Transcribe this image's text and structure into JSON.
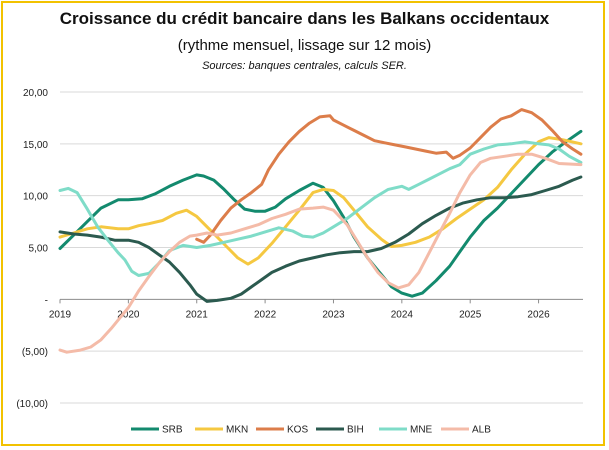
{
  "chart_data": {
    "type": "line",
    "title": "Croissance du crédit bancaire dans les Balkans occidentaux",
    "subtitle": "(rythme mensuel, lissage sur 12 mois)",
    "source": "Sources: banques centrales, calculs SER.",
    "xlabel": "",
    "ylabel": "",
    "xlim": [
      2019.0,
      2026.65
    ],
    "ylim": [
      -10,
      20
    ],
    "x_ticks": [
      2019,
      2020,
      2021,
      2022,
      2023,
      2024,
      2025,
      2026
    ],
    "x_tick_labels": [
      "2019",
      "2020",
      "2021",
      "2022",
      "2023",
      "2024",
      "2025",
      "2026"
    ],
    "y_ticks": [
      20,
      15,
      10,
      5,
      0,
      -5,
      -10
    ],
    "y_tick_labels": [
      "20,00",
      "15,00",
      "10,00",
      "5,00",
      "-",
      "(5,00)",
      "(10,00)"
    ],
    "grid": "horizontal",
    "legend": "bottom",
    "series": [
      {
        "name": "SRB",
        "color": "#138a6e",
        "points": [
          [
            2019.0,
            4.9
          ],
          [
            2019.2,
            6.2
          ],
          [
            2019.4,
            7.5
          ],
          [
            2019.6,
            8.8
          ],
          [
            2019.85,
            9.6
          ],
          [
            2020.0,
            9.6
          ],
          [
            2020.2,
            9.7
          ],
          [
            2020.4,
            10.2
          ],
          [
            2020.6,
            10.9
          ],
          [
            2020.8,
            11.5
          ],
          [
            2021.0,
            12.0
          ],
          [
            2021.1,
            11.9
          ],
          [
            2021.25,
            11.5
          ],
          [
            2021.4,
            10.6
          ],
          [
            2021.55,
            9.6
          ],
          [
            2021.7,
            8.7
          ],
          [
            2021.85,
            8.5
          ],
          [
            2022.0,
            8.5
          ],
          [
            2022.15,
            8.9
          ],
          [
            2022.3,
            9.7
          ],
          [
            2022.5,
            10.5
          ],
          [
            2022.7,
            11.2
          ],
          [
            2022.85,
            10.8
          ],
          [
            2023.0,
            9.5
          ],
          [
            2023.15,
            7.9
          ],
          [
            2023.3,
            6.0
          ],
          [
            2023.5,
            4.0
          ],
          [
            2023.7,
            2.4
          ],
          [
            2023.85,
            1.2
          ],
          [
            2024.0,
            0.6
          ],
          [
            2024.15,
            0.3
          ],
          [
            2024.3,
            0.6
          ],
          [
            2024.5,
            1.8
          ],
          [
            2024.7,
            3.2
          ],
          [
            2024.85,
            4.6
          ],
          [
            2025.0,
            6.0
          ],
          [
            2025.2,
            7.6
          ],
          [
            2025.4,
            8.8
          ],
          [
            2025.6,
            10.2
          ],
          [
            2025.8,
            11.6
          ],
          [
            2026.0,
            13.0
          ],
          [
            2026.2,
            14.2
          ],
          [
            2026.4,
            15.2
          ],
          [
            2026.62,
            16.2
          ]
        ]
      },
      {
        "name": "MKN",
        "color": "#f5c841",
        "points": [
          [
            2019.0,
            6.0
          ],
          [
            2019.2,
            6.4
          ],
          [
            2019.4,
            6.8
          ],
          [
            2019.6,
            7.0
          ],
          [
            2019.85,
            6.8
          ],
          [
            2020.0,
            6.8
          ],
          [
            2020.15,
            7.1
          ],
          [
            2020.3,
            7.3
          ],
          [
            2020.5,
            7.6
          ],
          [
            2020.7,
            8.3
          ],
          [
            2020.85,
            8.6
          ],
          [
            2021.0,
            8.0
          ],
          [
            2021.15,
            7.0
          ],
          [
            2021.3,
            6.0
          ],
          [
            2021.45,
            5.0
          ],
          [
            2021.6,
            4.0
          ],
          [
            2021.75,
            3.4
          ],
          [
            2021.9,
            4.0
          ],
          [
            2022.1,
            5.4
          ],
          [
            2022.3,
            7.0
          ],
          [
            2022.5,
            8.6
          ],
          [
            2022.7,
            10.3
          ],
          [
            2022.85,
            10.6
          ],
          [
            2023.0,
            10.5
          ],
          [
            2023.15,
            9.8
          ],
          [
            2023.3,
            8.6
          ],
          [
            2023.5,
            7.0
          ],
          [
            2023.7,
            5.8
          ],
          [
            2023.85,
            5.1
          ],
          [
            2024.0,
            5.2
          ],
          [
            2024.2,
            5.5
          ],
          [
            2024.4,
            6.0
          ],
          [
            2024.6,
            6.8
          ],
          [
            2024.8,
            7.8
          ],
          [
            2025.0,
            8.7
          ],
          [
            2025.2,
            9.6
          ],
          [
            2025.4,
            10.8
          ],
          [
            2025.6,
            12.5
          ],
          [
            2025.8,
            14.0
          ],
          [
            2026.0,
            15.2
          ],
          [
            2026.15,
            15.6
          ],
          [
            2026.35,
            15.4
          ],
          [
            2026.62,
            15.0
          ]
        ]
      },
      {
        "name": "KOS",
        "color": "#dc7d4a",
        "points": [
          [
            2021.0,
            5.8
          ],
          [
            2021.1,
            5.5
          ],
          [
            2021.2,
            6.2
          ],
          [
            2021.35,
            7.6
          ],
          [
            2021.5,
            8.8
          ],
          [
            2021.65,
            9.6
          ],
          [
            2021.8,
            10.3
          ],
          [
            2021.95,
            11.1
          ],
          [
            2022.05,
            12.5
          ],
          [
            2022.2,
            14.0
          ],
          [
            2022.35,
            15.2
          ],
          [
            2022.5,
            16.2
          ],
          [
            2022.65,
            17.0
          ],
          [
            2022.8,
            17.6
          ],
          [
            2022.95,
            17.7
          ],
          [
            2023.0,
            17.3
          ],
          [
            2023.15,
            16.8
          ],
          [
            2023.3,
            16.3
          ],
          [
            2023.45,
            15.8
          ],
          [
            2023.6,
            15.3
          ],
          [
            2023.75,
            15.1
          ],
          [
            2023.9,
            14.9
          ],
          [
            2024.05,
            14.7
          ],
          [
            2024.2,
            14.5
          ],
          [
            2024.35,
            14.3
          ],
          [
            2024.5,
            14.1
          ],
          [
            2024.65,
            14.2
          ],
          [
            2024.75,
            13.6
          ],
          [
            2024.85,
            13.9
          ],
          [
            2025.0,
            14.6
          ],
          [
            2025.15,
            15.6
          ],
          [
            2025.3,
            16.6
          ],
          [
            2025.45,
            17.4
          ],
          [
            2025.6,
            17.7
          ],
          [
            2025.75,
            18.3
          ],
          [
            2025.9,
            18.0
          ],
          [
            2026.05,
            17.3
          ],
          [
            2026.2,
            16.3
          ],
          [
            2026.35,
            15.2
          ],
          [
            2026.5,
            14.5
          ],
          [
            2026.62,
            14.0
          ]
        ]
      },
      {
        "name": "BIH",
        "color": "#2b5a4f",
        "points": [
          [
            2019.0,
            6.5
          ],
          [
            2019.2,
            6.3
          ],
          [
            2019.4,
            6.2
          ],
          [
            2019.6,
            6.0
          ],
          [
            2019.8,
            5.7
          ],
          [
            2020.0,
            5.7
          ],
          [
            2020.15,
            5.5
          ],
          [
            2020.3,
            5.0
          ],
          [
            2020.45,
            4.3
          ],
          [
            2020.6,
            3.6
          ],
          [
            2020.75,
            2.6
          ],
          [
            2020.9,
            1.4
          ],
          [
            2021.0,
            0.5
          ],
          [
            2021.15,
            -0.2
          ],
          [
            2021.3,
            -0.1
          ],
          [
            2021.5,
            0.1
          ],
          [
            2021.65,
            0.5
          ],
          [
            2021.8,
            1.2
          ],
          [
            2021.95,
            1.9
          ],
          [
            2022.1,
            2.6
          ],
          [
            2022.3,
            3.2
          ],
          [
            2022.5,
            3.7
          ],
          [
            2022.7,
            4.0
          ],
          [
            2022.9,
            4.3
          ],
          [
            2023.1,
            4.5
          ],
          [
            2023.3,
            4.6
          ],
          [
            2023.5,
            4.6
          ],
          [
            2023.7,
            4.9
          ],
          [
            2023.9,
            5.5
          ],
          [
            2024.1,
            6.3
          ],
          [
            2024.3,
            7.3
          ],
          [
            2024.5,
            8.1
          ],
          [
            2024.7,
            8.8
          ],
          [
            2024.9,
            9.3
          ],
          [
            2025.1,
            9.6
          ],
          [
            2025.3,
            9.8
          ],
          [
            2025.5,
            9.8
          ],
          [
            2025.7,
            9.9
          ],
          [
            2025.9,
            10.1
          ],
          [
            2026.1,
            10.5
          ],
          [
            2026.3,
            10.9
          ],
          [
            2026.5,
            11.5
          ],
          [
            2026.62,
            11.8
          ]
        ]
      },
      {
        "name": "MNE",
        "color": "#7fdcc8",
        "points": [
          [
            2019.0,
            10.5
          ],
          [
            2019.12,
            10.7
          ],
          [
            2019.25,
            10.3
          ],
          [
            2019.4,
            8.7
          ],
          [
            2019.55,
            7.0
          ],
          [
            2019.7,
            5.7
          ],
          [
            2019.85,
            4.5
          ],
          [
            2019.95,
            3.8
          ],
          [
            2020.05,
            2.7
          ],
          [
            2020.15,
            2.3
          ],
          [
            2020.3,
            2.5
          ],
          [
            2020.45,
            3.5
          ],
          [
            2020.6,
            4.7
          ],
          [
            2020.8,
            5.2
          ],
          [
            2021.0,
            5.0
          ],
          [
            2021.2,
            5.2
          ],
          [
            2021.4,
            5.5
          ],
          [
            2021.6,
            5.8
          ],
          [
            2021.8,
            6.1
          ],
          [
            2022.0,
            6.5
          ],
          [
            2022.2,
            6.9
          ],
          [
            2022.4,
            6.6
          ],
          [
            2022.55,
            6.1
          ],
          [
            2022.7,
            6.0
          ],
          [
            2022.85,
            6.4
          ],
          [
            2023.0,
            7.0
          ],
          [
            2023.2,
            7.8
          ],
          [
            2023.4,
            8.8
          ],
          [
            2023.6,
            9.8
          ],
          [
            2023.8,
            10.6
          ],
          [
            2024.0,
            10.9
          ],
          [
            2024.1,
            10.6
          ],
          [
            2024.25,
            11.1
          ],
          [
            2024.4,
            11.6
          ],
          [
            2024.55,
            12.1
          ],
          [
            2024.7,
            12.6
          ],
          [
            2024.85,
            13.0
          ],
          [
            2025.0,
            14.0
          ],
          [
            2025.2,
            14.5
          ],
          [
            2025.4,
            14.9
          ],
          [
            2025.6,
            15.0
          ],
          [
            2025.8,
            15.2
          ],
          [
            2026.0,
            15.0
          ],
          [
            2026.15,
            14.9
          ],
          [
            2026.3,
            14.5
          ],
          [
            2026.45,
            13.8
          ],
          [
            2026.62,
            13.2
          ]
        ]
      },
      {
        "name": "ALB",
        "color": "#f4bba8",
        "points": [
          [
            2019.0,
            -4.9
          ],
          [
            2019.1,
            -5.1
          ],
          [
            2019.3,
            -4.9
          ],
          [
            2019.45,
            -4.6
          ],
          [
            2019.6,
            -3.9
          ],
          [
            2019.75,
            -2.8
          ],
          [
            2019.9,
            -1.6
          ],
          [
            2020.0,
            -0.8
          ],
          [
            2020.15,
            0.8
          ],
          [
            2020.3,
            2.2
          ],
          [
            2020.45,
            3.5
          ],
          [
            2020.6,
            4.6
          ],
          [
            2020.75,
            5.5
          ],
          [
            2020.9,
            6.1
          ],
          [
            2021.0,
            6.2
          ],
          [
            2021.15,
            6.4
          ],
          [
            2021.3,
            6.2
          ],
          [
            2021.5,
            6.4
          ],
          [
            2021.7,
            6.8
          ],
          [
            2021.9,
            7.2
          ],
          [
            2022.1,
            7.8
          ],
          [
            2022.3,
            8.2
          ],
          [
            2022.5,
            8.7
          ],
          [
            2022.7,
            8.8
          ],
          [
            2022.85,
            8.9
          ],
          [
            2023.0,
            8.6
          ],
          [
            2023.1,
            7.9
          ],
          [
            2023.2,
            7.2
          ],
          [
            2023.35,
            5.6
          ],
          [
            2023.5,
            4.0
          ],
          [
            2023.65,
            2.6
          ],
          [
            2023.8,
            1.6
          ],
          [
            2023.95,
            1.1
          ],
          [
            2024.1,
            1.4
          ],
          [
            2024.25,
            2.6
          ],
          [
            2024.4,
            4.5
          ],
          [
            2024.55,
            6.4
          ],
          [
            2024.7,
            8.3
          ],
          [
            2024.85,
            10.3
          ],
          [
            2025.0,
            12.0
          ],
          [
            2025.15,
            13.2
          ],
          [
            2025.3,
            13.6
          ],
          [
            2025.5,
            13.8
          ],
          [
            2025.7,
            14.0
          ],
          [
            2025.9,
            14.0
          ],
          [
            2026.1,
            13.6
          ],
          [
            2026.3,
            13.1
          ],
          [
            2026.62,
            13.0
          ]
        ]
      }
    ]
  }
}
